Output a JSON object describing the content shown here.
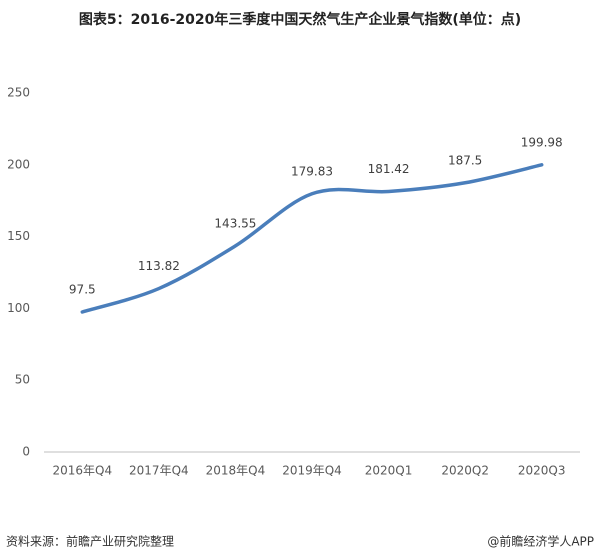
{
  "chart_data": {
    "type": "line",
    "title": "图表5：2016-2020年三季度中国天然气生产企业景气指数(单位：点)",
    "categories": [
      "2016年Q4",
      "2017年Q4",
      "2018年Q4",
      "2019年Q4",
      "2020Q1",
      "2020Q2",
      "2020Q3"
    ],
    "values": [
      97.5,
      113.82,
      143.55,
      179.83,
      181.42,
      187.5,
      199.98
    ],
    "color": "#4a7ebb",
    "ylim": [
      0,
      250
    ],
    "yticks": [
      0,
      50,
      100,
      150,
      200,
      250
    ],
    "grid": false,
    "source": "资料来源：前瞻产业研究院整理",
    "credit": "@前瞻经济学人APP"
  }
}
